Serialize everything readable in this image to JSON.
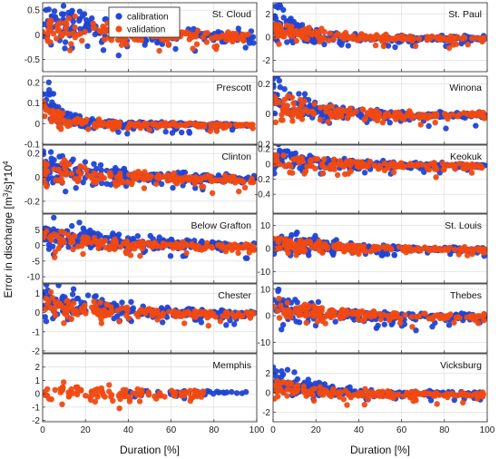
{
  "figure": {
    "ylabel_main": "Error in discharge [m",
    "ylabel_sup1": "3",
    "ylabel_mid": "/s]*10",
    "ylabel_sup2": "4",
    "xlabel": "Duration [%]"
  },
  "legend": {
    "calibration": "calibration",
    "validation": "validation"
  },
  "colors": {
    "calibration": "#1f45d6",
    "validation": "#f04a12",
    "grid": "#d9d9d9"
  },
  "chart_data": [
    {
      "type": "scatter",
      "station": "St. Cloud",
      "xlim": [
        0,
        100
      ],
      "ylim": [
        -0.75,
        0.65
      ],
      "yticks": [
        -0.5,
        0,
        0.5
      ],
      "ytick_labels": [
        "-0.5",
        "0",
        "0.5"
      ],
      "xticks": [
        0,
        20,
        40,
        60,
        80,
        100
      ],
      "xtick_labels": [
        "0",
        "20",
        "40",
        "60",
        "80",
        "100"
      ],
      "grid": true,
      "legend": "top",
      "series": [
        {
          "name": "calibration",
          "amp": 0.6,
          "decay": 0.03,
          "spread": 0.28,
          "bias": -0.05
        },
        {
          "name": "validation",
          "amp": 0.35,
          "decay": 0.03,
          "spread": 0.2,
          "bias": -0.05
        }
      ]
    },
    {
      "type": "scatter",
      "station": "St. Paul",
      "xlim": [
        0,
        100
      ],
      "ylim": [
        -3,
        3
      ],
      "yticks": [
        -2,
        0,
        2
      ],
      "ytick_labels": [
        "-2",
        "0",
        "2"
      ],
      "xticks": [
        0,
        20,
        40,
        60,
        80,
        100
      ],
      "xtick_labels": [
        "0",
        "20",
        "40",
        "60",
        "80",
        "100"
      ],
      "grid": true,
      "series": [
        {
          "name": "calibration",
          "amp": 2.5,
          "decay": 0.08,
          "spread": 0.55,
          "bias": -0.1
        },
        {
          "name": "validation",
          "amp": 1.3,
          "decay": 0.06,
          "spread": 0.5,
          "bias": -0.1
        }
      ]
    },
    {
      "type": "scatter",
      "station": "Prescott",
      "xlim": [
        0,
        100
      ],
      "ylim": [
        -0.1,
        0.23
      ],
      "yticks": [
        -0.1,
        0,
        0.1,
        0.2
      ],
      "ytick_labels": [
        "-0.1",
        "0",
        "0.1",
        "0.2"
      ],
      "xticks": [
        0,
        20,
        40,
        60,
        80,
        100
      ],
      "xtick_labels": [
        "0",
        "20",
        "40",
        "60",
        "80",
        "100"
      ],
      "grid": true,
      "series": [
        {
          "name": "calibration",
          "amp": 0.2,
          "decay": 0.12,
          "spread": 0.03,
          "bias": -0.005
        },
        {
          "name": "validation",
          "amp": 0.1,
          "decay": 0.1,
          "spread": 0.025,
          "bias": -0.005
        }
      ]
    },
    {
      "type": "scatter",
      "station": "Winona",
      "xlim": [
        0,
        100
      ],
      "ylim": [
        -0.2,
        0.25
      ],
      "yticks": [
        -0.2,
        0,
        0.2
      ],
      "ytick_labels": [
        "-0.2",
        "0",
        "0.2"
      ],
      "xticks": [
        0,
        20,
        40,
        60,
        80,
        100
      ],
      "xtick_labels": [
        "0",
        "20",
        "40",
        "60",
        "80",
        "100"
      ],
      "grid": true,
      "series": [
        {
          "name": "calibration",
          "amp": 0.2,
          "decay": 0.06,
          "spread": 0.05,
          "bias": -0.01
        },
        {
          "name": "validation",
          "amp": 0.12,
          "decay": 0.05,
          "spread": 0.05,
          "bias": -0.01
        }
      ]
    },
    {
      "type": "scatter",
      "station": "Clinton",
      "xlim": [
        0,
        100
      ],
      "ylim": [
        -0.3,
        0.27
      ],
      "yticks": [
        -0.2,
        0,
        0.2
      ],
      "ytick_labels": [
        "-0.2",
        "0",
        "0.2"
      ],
      "xticks": [
        0,
        20,
        40,
        60,
        80,
        100
      ],
      "xtick_labels": [
        "0",
        "20",
        "40",
        "60",
        "80",
        "100"
      ],
      "grid": true,
      "series": [
        {
          "name": "calibration",
          "amp": 0.2,
          "decay": 0.04,
          "spread": 0.07,
          "bias": -0.01
        },
        {
          "name": "validation",
          "amp": 0.12,
          "decay": 0.03,
          "spread": 0.08,
          "bias": -0.02
        }
      ]
    },
    {
      "type": "scatter",
      "station": "Keokuk",
      "xlim": [
        0,
        100
      ],
      "ylim": [
        -0.65,
        0.25
      ],
      "yticks": [
        -0.4,
        -0.2,
        0,
        0.2
      ],
      "ytick_labels": [
        "-0.4",
        "-0.2",
        "0",
        "0.2"
      ],
      "xticks": [
        0,
        20,
        40,
        60,
        80,
        100
      ],
      "xtick_labels": [
        "0",
        "20",
        "40",
        "60",
        "80",
        "100"
      ],
      "grid": true,
      "series": [
        {
          "name": "calibration",
          "amp": 0.2,
          "decay": 0.05,
          "spread": 0.09,
          "bias": -0.02
        },
        {
          "name": "validation",
          "amp": 0.12,
          "decay": 0.04,
          "spread": 0.1,
          "bias": -0.03
        }
      ]
    },
    {
      "type": "scatter",
      "station": "Below Grafton",
      "xlim": [
        0,
        100
      ],
      "ylim": [
        -12,
        10
      ],
      "yticks": [
        -10,
        -5,
        0,
        5
      ],
      "ytick_labels": [
        "-10",
        "-5",
        "0",
        "5"
      ],
      "xticks": [
        0,
        20,
        40,
        60,
        80,
        100
      ],
      "xtick_labels": [
        "0",
        "20",
        "40",
        "60",
        "80",
        "100"
      ],
      "grid": true,
      "series": [
        {
          "name": "calibration",
          "amp": 8,
          "decay": 0.03,
          "spread": 2.6,
          "bias": -0.5
        },
        {
          "name": "validation",
          "amp": 5,
          "decay": 0.03,
          "spread": 2.0,
          "bias": -0.5
        }
      ]
    },
    {
      "type": "scatter",
      "station": "St. Louis",
      "xlim": [
        0,
        100
      ],
      "ylim": [
        -15,
        15
      ],
      "yticks": [
        -10,
        0,
        10
      ],
      "ytick_labels": [
        "-10",
        "0",
        "10"
      ],
      "xticks": [
        0,
        20,
        40,
        60,
        80,
        100
      ],
      "xtick_labels": [
        "0",
        "20",
        "40",
        "60",
        "80",
        "100"
      ],
      "grid": true,
      "series": [
        {
          "name": "calibration",
          "amp": 8,
          "decay": 0.04,
          "spread": 2.5,
          "bias": -0.5
        },
        {
          "name": "validation",
          "amp": 5,
          "decay": 0.04,
          "spread": 2.2,
          "bias": -0.5
        }
      ]
    },
    {
      "type": "scatter",
      "station": "Chester",
      "xlim": [
        0,
        100
      ],
      "ylim": [
        -2.1,
        1.5
      ],
      "yticks": [
        -2,
        -1,
        0,
        1
      ],
      "ytick_labels": [
        "-2",
        "-1",
        "0",
        "1"
      ],
      "xticks": [
        0,
        20,
        40,
        60,
        80,
        100
      ],
      "xtick_labels": [
        "0",
        "20",
        "40",
        "60",
        "80",
        "100"
      ],
      "grid": true,
      "series": [
        {
          "name": "calibration",
          "amp": 1.2,
          "decay": 0.03,
          "spread": 0.4,
          "bias": -0.1
        },
        {
          "name": "validation",
          "amp": 0.7,
          "decay": 0.03,
          "spread": 0.35,
          "bias": -0.1
        }
      ]
    },
    {
      "type": "scatter",
      "station": "Thebes",
      "xlim": [
        0,
        100
      ],
      "ylim": [
        -14,
        12
      ],
      "yticks": [
        -10,
        0,
        10
      ],
      "ytick_labels": [
        "-10",
        "0",
        "10"
      ],
      "xticks": [
        0,
        20,
        40,
        60,
        80,
        100
      ],
      "xtick_labels": [
        "0",
        "20",
        "40",
        "60",
        "80",
        "100"
      ],
      "grid": true,
      "series": [
        {
          "name": "calibration",
          "amp": 8,
          "decay": 0.05,
          "spread": 2.8,
          "bias": -0.5
        },
        {
          "name": "validation",
          "amp": 6,
          "decay": 0.04,
          "spread": 2.6,
          "bias": -0.5
        }
      ]
    },
    {
      "type": "scatter",
      "station": "Memphis",
      "xlim": [
        0,
        100
      ],
      "ylim": [
        -2.1,
        3
      ],
      "yticks": [
        -2,
        -1,
        0,
        1,
        2
      ],
      "ytick_labels": [
        "-2",
        "-1",
        "0",
        "1",
        "2"
      ],
      "xticks": [
        0,
        20,
        40,
        60,
        80,
        100
      ],
      "xtick_labels": [
        "0",
        "20",
        "40",
        "60",
        "80",
        "100"
      ],
      "grid": true,
      "series": [
        {
          "name": "calibration",
          "amp": 0.3,
          "decay": 0.02,
          "spread": 0.35,
          "bias": 0
        },
        {
          "name": "validation",
          "amp": 0.5,
          "decay": 0.02,
          "spread": 0.7,
          "bias": -0.1
        }
      ]
    },
    {
      "type": "scatter",
      "station": "Vicksburg",
      "xlim": [
        0,
        100
      ],
      "ylim": [
        -3,
        4
      ],
      "yticks": [
        -2,
        0,
        2
      ],
      "ytick_labels": [
        "-2",
        "0",
        "2"
      ],
      "xticks": [
        0,
        20,
        40,
        60,
        80,
        100
      ],
      "xtick_labels": [
        "0",
        "20",
        "40",
        "60",
        "80",
        "100"
      ],
      "grid": true,
      "series": [
        {
          "name": "calibration",
          "amp": 2.5,
          "decay": 0.06,
          "spread": 0.5,
          "bias": -0.1
        },
        {
          "name": "validation",
          "amp": 1.2,
          "decay": 0.05,
          "spread": 0.6,
          "bias": -0.2
        }
      ]
    }
  ]
}
